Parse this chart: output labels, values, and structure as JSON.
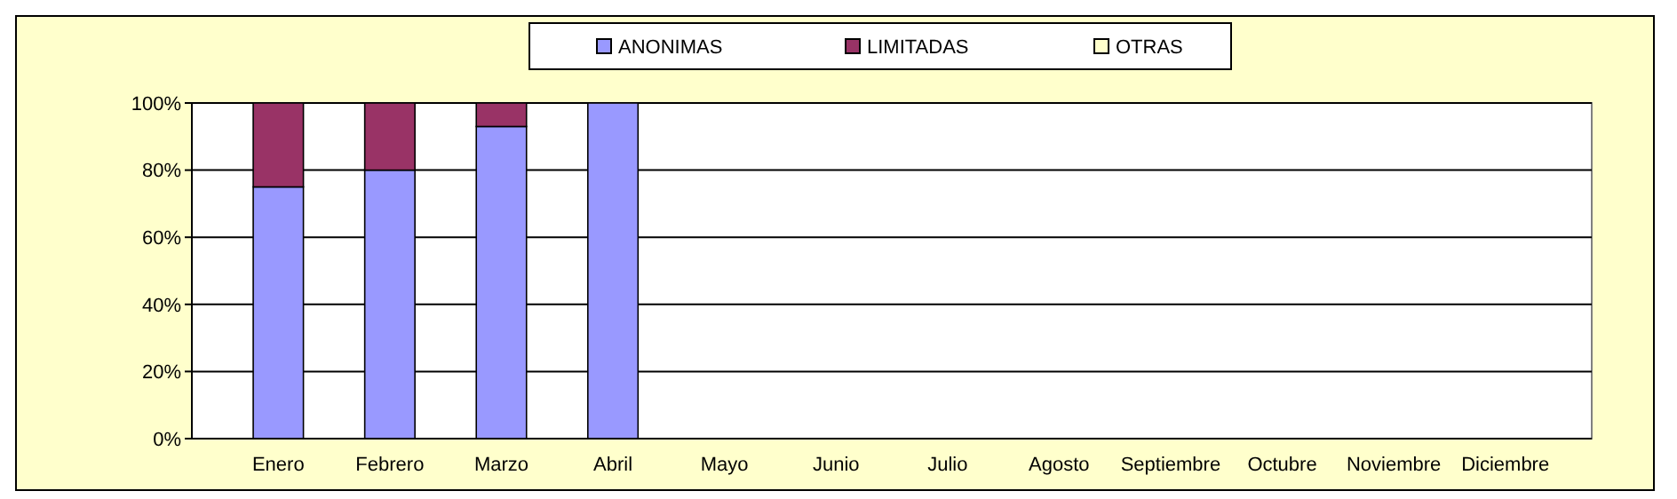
{
  "chart_data": {
    "type": "bar",
    "stacked": true,
    "categories": [
      "Enero",
      "Febrero",
      "Marzo",
      "Abril",
      "Mayo",
      "Junio",
      "Julio",
      "Agosto",
      "Septiembre",
      "Octubre",
      "Noviembre",
      "Diciembre"
    ],
    "series": [
      {
        "name": "ANONIMAS",
        "color": "#9999ff",
        "values": [
          75,
          80,
          93,
          100,
          0,
          0,
          0,
          0,
          0,
          0,
          0,
          0
        ]
      },
      {
        "name": "LIMITADAS",
        "color": "#993366",
        "values": [
          25,
          20,
          7,
          0,
          0,
          0,
          0,
          0,
          0,
          0,
          0,
          0
        ]
      },
      {
        "name": "OTRAS",
        "color": "#ffffcc",
        "values": [
          0,
          0,
          0,
          0,
          0,
          0,
          0,
          0,
          0,
          0,
          0,
          0
        ]
      }
    ],
    "ylim": [
      0,
      100
    ],
    "yticks": [
      {
        "value": 0,
        "label": "0%"
      },
      {
        "value": 20,
        "label": "20%"
      },
      {
        "value": 40,
        "label": "40%"
      },
      {
        "value": 60,
        "label": "60%"
      },
      {
        "value": 80,
        "label": "80%"
      },
      {
        "value": 100,
        "label": "100%"
      }
    ],
    "grid": "y",
    "legend": "top"
  }
}
